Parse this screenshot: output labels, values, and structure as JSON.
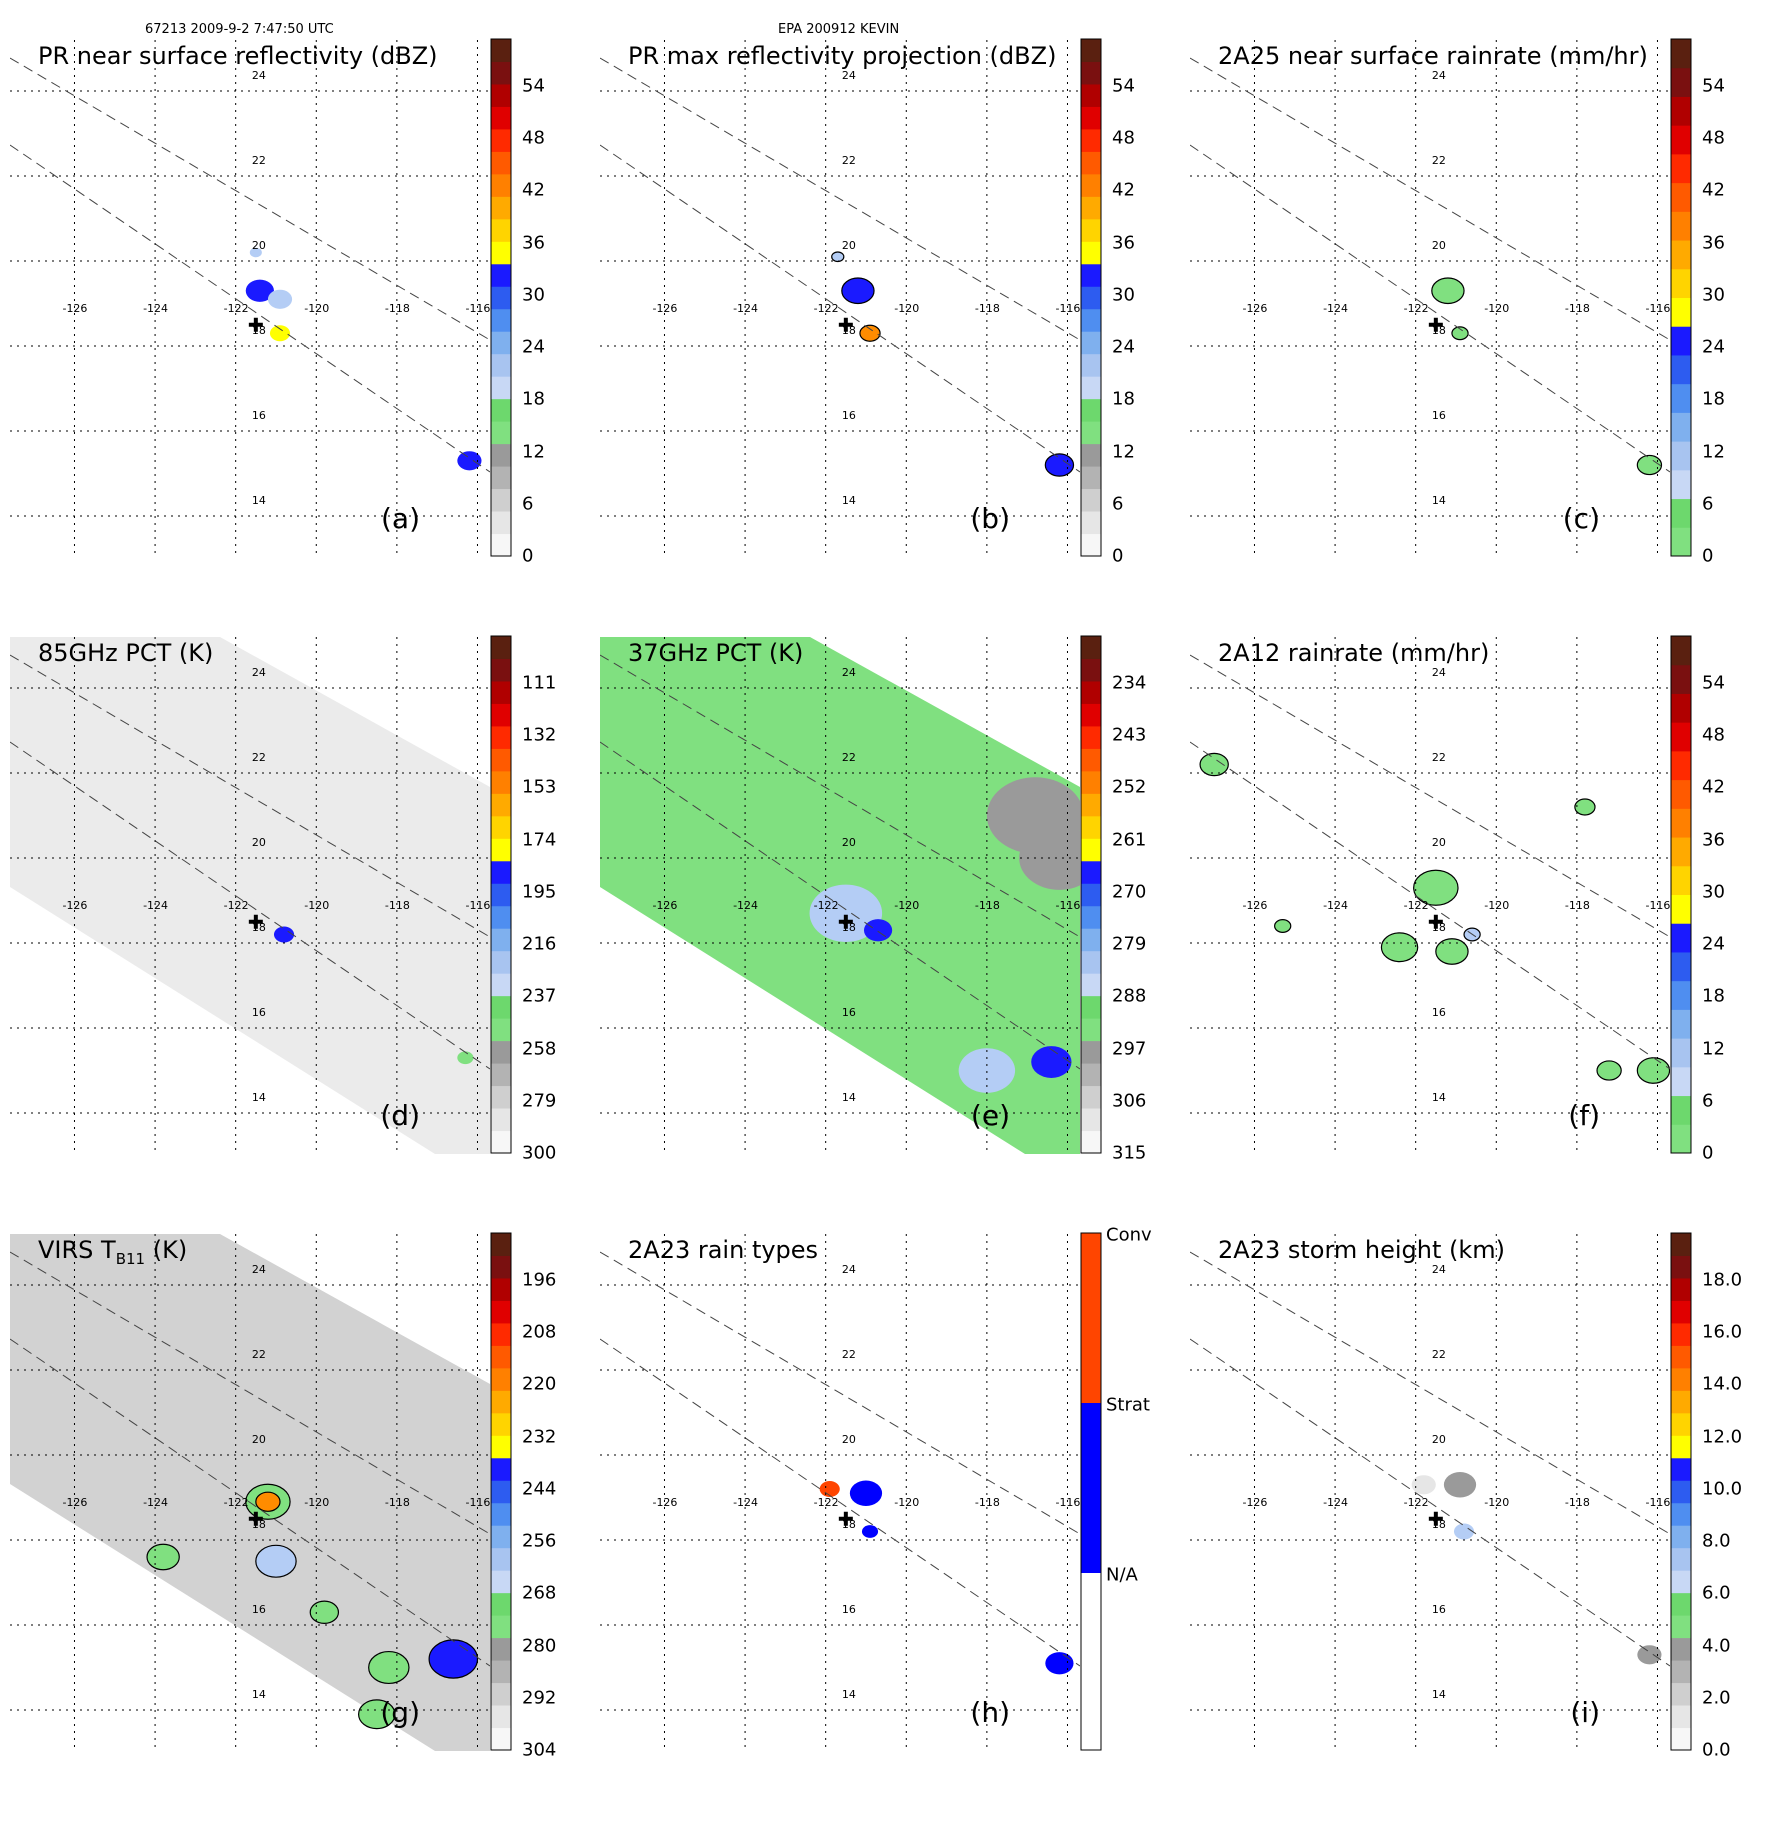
{
  "header": {
    "orbit_time": "67213 2009-9-2 7:47:50 UTC",
    "storm": "EPA 200912 KEVIN"
  },
  "colors": {
    "gray_light": "#e6e6e6",
    "gray_mid": "#9a9a9a",
    "green": "#80e080",
    "blue_light": "#b4cdf5",
    "blue": "#1a1aff",
    "yellow": "#ffff00",
    "orange": "#ff8c00",
    "red": "#ee0000",
    "dark_red": "#6e0000",
    "strat_blue": "#0000ff",
    "conv_orange": "#ff4500"
  },
  "map": {
    "lon_labels": [
      "-126",
      "-124",
      "-122",
      "-120",
      "-118",
      "-116"
    ],
    "lat_labels": [
      "24",
      "22",
      "20",
      "18",
      "16",
      "14"
    ],
    "storm_center": {
      "lon": -121.5,
      "lat": 18.5
    }
  },
  "panels": [
    {
      "id": "a",
      "title": "PR near surface reflectivity (dBZ)",
      "label": "(a)",
      "scale": "dbz",
      "colorbar_ticks": [
        "54",
        "48",
        "42",
        "36",
        "30",
        "24",
        "18",
        "12",
        "6",
        "0"
      ],
      "swath": "none",
      "rain": [
        {
          "lon": -121.4,
          "lat": 19.3,
          "r": 0.35,
          "cls": "blue"
        },
        {
          "lon": -120.9,
          "lat": 19.1,
          "r": 0.3,
          "cls": "blue_light"
        },
        {
          "lon": -120.9,
          "lat": 18.3,
          "r": 0.25,
          "cls": "yellow"
        },
        {
          "lon": -121.5,
          "lat": 20.2,
          "r": 0.15,
          "cls": "blue_light"
        },
        {
          "lon": -116.2,
          "lat": 15.3,
          "r": 0.3,
          "cls": "blue"
        }
      ]
    },
    {
      "id": "b",
      "title": "PR max reflectivity projection (dBZ)",
      "label": "(b)",
      "scale": "dbz",
      "colorbar_ticks": [
        "54",
        "48",
        "42",
        "36",
        "30",
        "24",
        "18",
        "12",
        "6",
        "0"
      ],
      "swath": "none",
      "rain": [
        {
          "lon": -121.2,
          "lat": 19.3,
          "r": 0.4,
          "cls": "blue"
        },
        {
          "lon": -120.9,
          "lat": 18.3,
          "r": 0.25,
          "cls": "orange"
        },
        {
          "lon": -121.7,
          "lat": 20.1,
          "r": 0.15,
          "cls": "blue_light"
        },
        {
          "lon": -116.2,
          "lat": 15.2,
          "r": 0.35,
          "cls": "blue"
        }
      ]
    },
    {
      "id": "c",
      "title": "2A25 near surface rainrate (mm/hr)",
      "label": "(c)",
      "scale": "rain",
      "colorbar_ticks": [
        "54",
        "48",
        "42",
        "36",
        "30",
        "24",
        "18",
        "12",
        "6",
        "0"
      ],
      "swath": "none",
      "rain": [
        {
          "lon": -121.2,
          "lat": 19.3,
          "r": 0.4,
          "cls": "green"
        },
        {
          "lon": -120.9,
          "lat": 18.3,
          "r": 0.2,
          "cls": "green"
        },
        {
          "lon": -116.2,
          "lat": 15.2,
          "r": 0.3,
          "cls": "green"
        }
      ]
    },
    {
      "id": "d",
      "title": "85GHz PCT (K)",
      "label": "(d)",
      "scale": "pct85",
      "colorbar_ticks": [
        "111",
        "132",
        "153",
        "174",
        "195",
        "216",
        "237",
        "258",
        "279",
        "300"
      ],
      "swath": "light",
      "rain": [
        {
          "lon": -120.8,
          "lat": 18.2,
          "r": 0.25,
          "cls": "blue"
        },
        {
          "lon": -116.3,
          "lat": 15.3,
          "r": 0.2,
          "cls": "green"
        }
      ]
    },
    {
      "id": "e",
      "title": "37GHz PCT (K)",
      "label": "(e)",
      "scale": "pct37",
      "colorbar_ticks": [
        "234",
        "243",
        "252",
        "261",
        "270",
        "279",
        "288",
        "297",
        "306",
        "315"
      ],
      "swath": "green",
      "rain": [
        {
          "lon": -121.5,
          "lat": 18.7,
          "r": 0.9,
          "cls": "blue_light"
        },
        {
          "lon": -120.7,
          "lat": 18.3,
          "r": 0.35,
          "cls": "blue"
        },
        {
          "lon": -118.0,
          "lat": 15.0,
          "r": 0.7,
          "cls": "blue_light"
        },
        {
          "lon": -116.4,
          "lat": 15.2,
          "r": 0.5,
          "cls": "blue"
        },
        {
          "lon": -116.8,
          "lat": 21.0,
          "r": 1.2,
          "cls": "gray_mid"
        },
        {
          "lon": -116.2,
          "lat": 20.0,
          "r": 1.0,
          "cls": "gray_mid"
        }
      ]
    },
    {
      "id": "f",
      "title": "2A12 rainrate (mm/hr)",
      "label": "(f)",
      "scale": "rain",
      "colorbar_ticks": [
        "54",
        "48",
        "42",
        "36",
        "30",
        "24",
        "18",
        "12",
        "6",
        "0"
      ],
      "swath": "none",
      "rain": [
        {
          "lon": -121.5,
          "lat": 19.3,
          "r": 0.55,
          "cls": "green"
        },
        {
          "lon": -122.4,
          "lat": 17.9,
          "r": 0.45,
          "cls": "green"
        },
        {
          "lon": -121.1,
          "lat": 17.8,
          "r": 0.4,
          "cls": "green"
        },
        {
          "lon": -127.0,
          "lat": 22.2,
          "r": 0.35,
          "cls": "green"
        },
        {
          "lon": -117.8,
          "lat": 21.2,
          "r": 0.25,
          "cls": "green"
        },
        {
          "lon": -116.1,
          "lat": 15.0,
          "r": 0.4,
          "cls": "green"
        },
        {
          "lon": -117.2,
          "lat": 15.0,
          "r": 0.3,
          "cls": "green"
        },
        {
          "lon": -125.3,
          "lat": 18.4,
          "r": 0.2,
          "cls": "green"
        },
        {
          "lon": -120.6,
          "lat": 18.2,
          "r": 0.2,
          "cls": "blue_light"
        }
      ]
    },
    {
      "id": "g",
      "title": "VIRS T",
      "title_sub": "B11",
      "title_end": " (K)",
      "label": "(g)",
      "scale": "virs",
      "colorbar_ticks": [
        "196",
        "208",
        "220",
        "232",
        "244",
        "256",
        "268",
        "280",
        "292",
        "304"
      ],
      "swath": "gray",
      "rain": [
        {
          "lon": -121.2,
          "lat": 18.9,
          "r": 0.55,
          "cls": "green"
        },
        {
          "lon": -121.2,
          "lat": 18.9,
          "r": 0.3,
          "cls": "orange"
        },
        {
          "lon": -121.0,
          "lat": 17.5,
          "r": 0.5,
          "cls": "blue_light"
        },
        {
          "lon": -116.6,
          "lat": 15.2,
          "r": 0.6,
          "cls": "blue"
        },
        {
          "lon": -118.2,
          "lat": 15.0,
          "r": 0.5,
          "cls": "green"
        },
        {
          "lon": -123.8,
          "lat": 17.6,
          "r": 0.4,
          "cls": "green"
        },
        {
          "lon": -118.5,
          "lat": 13.9,
          "r": 0.45,
          "cls": "green"
        },
        {
          "lon": -119.8,
          "lat": 16.3,
          "r": 0.35,
          "cls": "green"
        }
      ]
    },
    {
      "id": "h",
      "title": "2A23 rain types",
      "label": "(h)",
      "scale": "types",
      "colorbar_ticks": [
        "Conv",
        "Strat",
        "N/A"
      ],
      "swath": "none",
      "rain": [
        {
          "lon": -121.0,
          "lat": 19.1,
          "r": 0.4,
          "cls": "strat_blue"
        },
        {
          "lon": -121.9,
          "lat": 19.2,
          "r": 0.25,
          "cls": "conv_orange"
        },
        {
          "lon": -120.9,
          "lat": 18.2,
          "r": 0.2,
          "cls": "strat_blue"
        },
        {
          "lon": -116.2,
          "lat": 15.1,
          "r": 0.35,
          "cls": "strat_blue"
        }
      ]
    },
    {
      "id": "i",
      "title": "2A23 storm height (km)",
      "label": "(i)",
      "scale": "height",
      "colorbar_ticks": [
        "18.0",
        "16.0",
        "14.0",
        "12.0",
        "10.0",
        "8.0",
        "6.0",
        "4.0",
        "2.0",
        "0.0"
      ],
      "swath": "none",
      "rain": [
        {
          "lon": -120.9,
          "lat": 19.3,
          "r": 0.4,
          "cls": "gray_mid"
        },
        {
          "lon": -120.8,
          "lat": 18.2,
          "r": 0.25,
          "cls": "blue_light"
        },
        {
          "lon": -121.8,
          "lat": 19.3,
          "r": 0.3,
          "cls": "gray_light"
        },
        {
          "lon": -116.2,
          "lat": 15.3,
          "r": 0.3,
          "cls": "gray_mid"
        }
      ]
    }
  ]
}
